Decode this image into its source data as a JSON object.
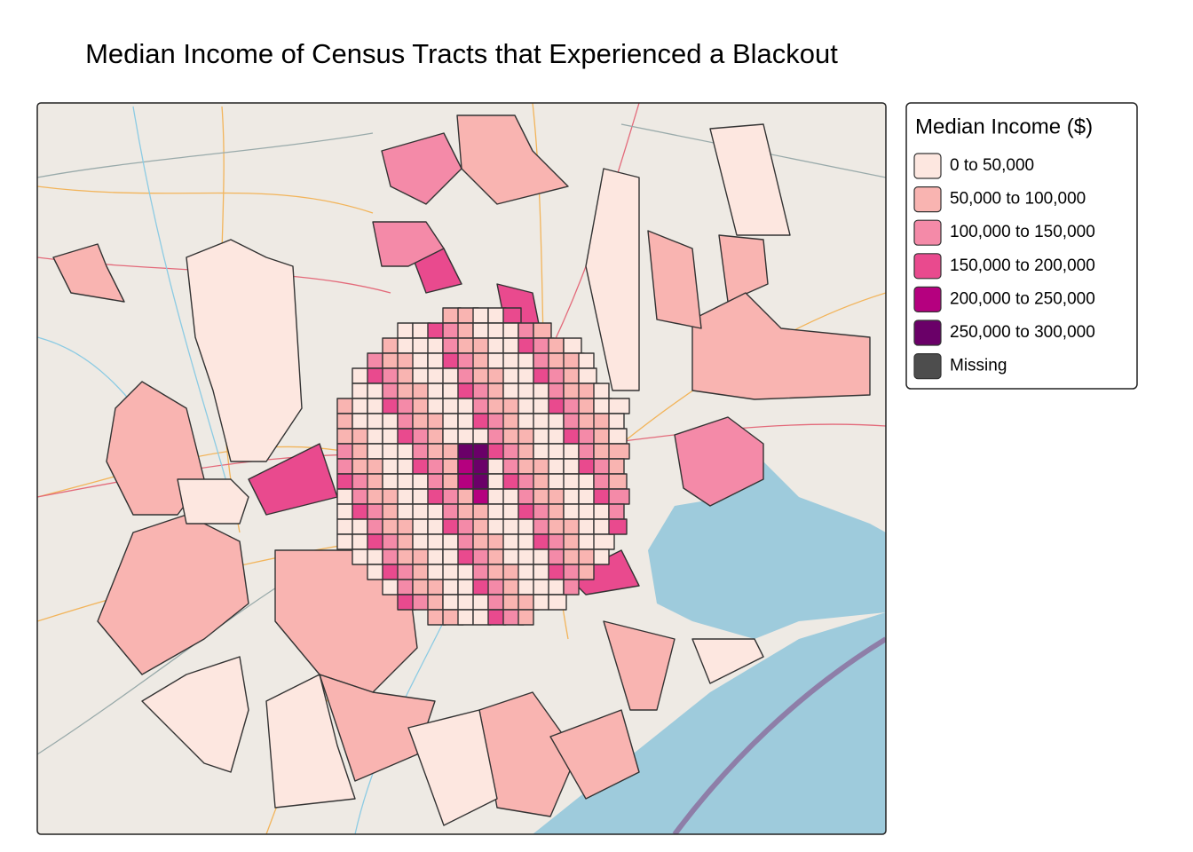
{
  "header": {
    "title": "Median Income of Census Tracts that Experienced a Blackout"
  },
  "legend": {
    "title": "Median Income ($)",
    "items": [
      {
        "label": "0 to 50,000",
        "color": "#fde7e0"
      },
      {
        "label": "50,000 to 100,000",
        "color": "#f9b4b1"
      },
      {
        "label": "100,000 to 150,000",
        "color": "#f48aa8"
      },
      {
        "label": "150,000 to 200,000",
        "color": "#e94a8e"
      },
      {
        "label": "200,000 to 250,000",
        "color": "#b5007f"
      },
      {
        "label": "250,000 to 300,000",
        "color": "#6a0068"
      },
      {
        "label": "Missing",
        "color": "#4d4d4d"
      }
    ]
  }
}
